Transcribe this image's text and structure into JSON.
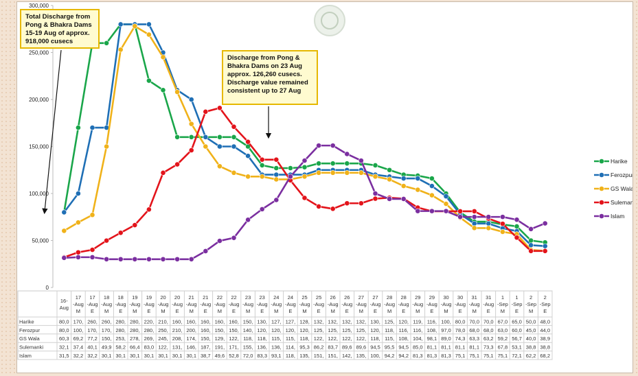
{
  "chart_data": {
    "type": "line",
    "categories": [
      [
        "16-",
        "Aug"
      ],
      [
        "17",
        "-Aug",
        "M"
      ],
      [
        "17",
        "-Aug",
        "E"
      ],
      [
        "18",
        "-Aug",
        "M"
      ],
      [
        "18",
        "-Aug",
        "E"
      ],
      [
        "19",
        "-Aug",
        "M"
      ],
      [
        "19",
        "-Aug",
        "E"
      ],
      [
        "20",
        "-Aug",
        "M"
      ],
      [
        "20",
        "-Aug",
        "E"
      ],
      [
        "21",
        "-Aug",
        "M"
      ],
      [
        "21",
        "-Aug",
        "E"
      ],
      [
        "22",
        "-Aug",
        "M"
      ],
      [
        "22",
        "-Aug",
        "E"
      ],
      [
        "23",
        "-Aug",
        "M"
      ],
      [
        "23",
        "-Aug",
        "E"
      ],
      [
        "24",
        "-Aug",
        "M"
      ],
      [
        "24",
        "-Aug",
        "E"
      ],
      [
        "25",
        "-Aug",
        "M"
      ],
      [
        "25",
        "-Aug",
        "E"
      ],
      [
        "26",
        "-Aug",
        "M"
      ],
      [
        "26",
        "-Aug",
        "E"
      ],
      [
        "27",
        "-Aug",
        "M"
      ],
      [
        "27",
        "-Aug",
        "E"
      ],
      [
        "28",
        "-Aug",
        "M"
      ],
      [
        "28",
        "-Aug",
        "E"
      ],
      [
        "29",
        "-Aug",
        "M"
      ],
      [
        "29",
        "-Aug",
        "E"
      ],
      [
        "30",
        "-Aug",
        "M"
      ],
      [
        "30",
        "-Aug",
        "E"
      ],
      [
        "31",
        "-Aug",
        "M"
      ],
      [
        "31",
        "-Aug",
        "E"
      ],
      [
        "1",
        "-Sep",
        "M"
      ],
      [
        "1",
        "-Sep",
        "E"
      ],
      [
        "2",
        "-Sep",
        "M"
      ],
      [
        "2",
        "-Sep",
        "E"
      ]
    ],
    "ylim": [
      0,
      300000
    ],
    "yticks": [
      0,
      50000,
      100000,
      150000,
      200000,
      250000,
      300000
    ],
    "ytick_labels": [
      "0",
      "50,000",
      "100,000",
      "150,000",
      "200,000",
      "250,000",
      "300,000"
    ],
    "grid": false,
    "legend_position": "right",
    "series": [
      {
        "name": "Harike",
        "color": "#1aa64a",
        "values": [
          80000,
          170000,
          260000,
          260000,
          280000,
          280000,
          220000,
          210000,
          160000,
          160000,
          160000,
          160000,
          160000,
          150000,
          130000,
          127000,
          127000,
          128000,
          132000,
          132000,
          132000,
          132000,
          130000,
          125000,
          120000,
          119000,
          116000,
          100000,
          80000,
          70000,
          70000,
          67000,
          65000,
          50000,
          48000
        ],
        "row_labels": [
          "80,0",
          "170,",
          "260,",
          "260,",
          "280,",
          "280,",
          "220,",
          "210,",
          "160,",
          "160,",
          "160,",
          "160,",
          "160,",
          "150,",
          "130,",
          "127,",
          "127,",
          "128,",
          "132,",
          "132,",
          "132,",
          "132,",
          "130,",
          "125,",
          "120,",
          "119,",
          "116,",
          "100,",
          "80,0",
          "70,0",
          "70,0",
          "67,0",
          "65,0",
          "50,0",
          "48,0"
        ]
      },
      {
        "name": "Ferozpur",
        "color": "#1f6fb5",
        "values": [
          80000,
          100000,
          170000,
          170000,
          280000,
          280000,
          280000,
          250000,
          210000,
          200000,
          160000,
          150000,
          150000,
          140000,
          120000,
          120000,
          120000,
          120000,
          125000,
          125000,
          125000,
          125000,
          120000,
          118000,
          116000,
          116000,
          108000,
          97000,
          78000,
          68000,
          68000,
          63000,
          60000,
          45000,
          44000
        ],
        "row_labels": [
          "80,0",
          "100,",
          "170,",
          "170,",
          "280,",
          "280,",
          "280,",
          "250,",
          "210,",
          "200,",
          "160,",
          "150,",
          "150,",
          "140,",
          "120,",
          "120,",
          "120,",
          "120,",
          "125,",
          "125,",
          "125,",
          "125,",
          "120,",
          "118,",
          "116,",
          "116,",
          "108,",
          "97,0",
          "78,0",
          "68,0",
          "68,0",
          "63,0",
          "60,0",
          "45,0",
          "44,0"
        ]
      },
      {
        "name": "GS Wala",
        "color": "#f0b21a",
        "values": [
          60300,
          69200,
          77200,
          150000,
          253000,
          278000,
          269000,
          245000,
          208000,
          174000,
          150000,
          129000,
          122000,
          118000,
          118000,
          115000,
          115000,
          118000,
          122000,
          122000,
          122000,
          122000,
          118000,
          115000,
          108000,
          104000,
          98100,
          89000,
          74300,
          63300,
          63200,
          59200,
          56700,
          40000,
          38900
        ],
        "row_labels": [
          "60,3",
          "69,2",
          "77,2",
          "150,",
          "253,",
          "278,",
          "269,",
          "245,",
          "208,",
          "174,",
          "150,",
          "129,",
          "122,",
          "118,",
          "118,",
          "115,",
          "115,",
          "118,",
          "122,",
          "122,",
          "122,",
          "122,",
          "118,",
          "115,",
          "108,",
          "104,",
          "98,1",
          "89,0",
          "74,3",
          "63,3",
          "63,2",
          "59,2",
          "56,7",
          "40,0",
          "38,9"
        ]
      },
      {
        "name": "Sulemanki",
        "legend_label": "Sulemank",
        "color": "#e3141b",
        "values": [
          32100,
          37400,
          40100,
          49900,
          58200,
          66400,
          83000,
          122000,
          131000,
          146000,
          187000,
          191000,
          171000,
          155000,
          136000,
          136000,
          114000,
          95300,
          86200,
          83700,
          89600,
          89600,
          94500,
          95500,
          94500,
          85000,
          81100,
          81100,
          81100,
          81100,
          73300,
          67800,
          53100,
          38800,
          38800
        ],
        "row_labels": [
          "32,1",
          "37,4",
          "40,1",
          "49,9",
          "58,2",
          "66,4",
          "83,0",
          "122,",
          "131,",
          "146,",
          "187,",
          "191,",
          "171,",
          "155,",
          "136,",
          "136,",
          "114,",
          "95,3",
          "86,2",
          "83,7",
          "89,6",
          "89,6",
          "94,5",
          "95,5",
          "94,5",
          "85,0",
          "81,1",
          "81,1",
          "81,1",
          "81,1",
          "73,3",
          "67,8",
          "53,1",
          "38,8",
          "38,8"
        ]
      },
      {
        "name": "Islam",
        "color": "#7b2fa0",
        "values": [
          31500,
          32200,
          32200,
          30100,
          30100,
          30100,
          30100,
          30100,
          30100,
          30100,
          38700,
          49600,
          52800,
          72000,
          83300,
          93100,
          118000,
          135000,
          151000,
          151000,
          142000,
          135000,
          100000,
          94200,
          94200,
          81300,
          81300,
          81300,
          75100,
          75100,
          75100,
          75100,
          72100,
          62200,
          68200
        ],
        "row_labels": [
          "31,5",
          "32,2",
          "32,2",
          "30,1",
          "30,1",
          "30,1",
          "30,1",
          "30,1",
          "30,1",
          "30,1",
          "38,7",
          "49,6",
          "52,8",
          "72,0",
          "83,3",
          "93,1",
          "118,",
          "135,",
          "151,",
          "151,",
          "142,",
          "135,",
          "100,",
          "94,2",
          "94,2",
          "81,3",
          "81,3",
          "81,3",
          "75,1",
          "75,1",
          "75,1",
          "75,1",
          "72,1",
          "62,2",
          "68,2"
        ]
      }
    ],
    "annotations": [
      "Total Discharge from Pong & Bhakra Dams 15-19 Aug of approx. 918,000 cusecs",
      "Discharge from Pong & Bhakra Dams on 23 Aug approx. 126,260 cusecs. Discharge value remained consistent up to 27 Aug"
    ]
  },
  "callouts": {
    "first": "Total Discharge from Pong & Bhakra Dams 15-19 Aug of approx. 918,000 cusecs",
    "second": "Discharge from Pong & Bhakra Dams on 23 Aug approx. 126,260 cusecs. Discharge value remained consistent up to 27 Aug"
  },
  "watermark_icon": "emblem-seal-icon"
}
